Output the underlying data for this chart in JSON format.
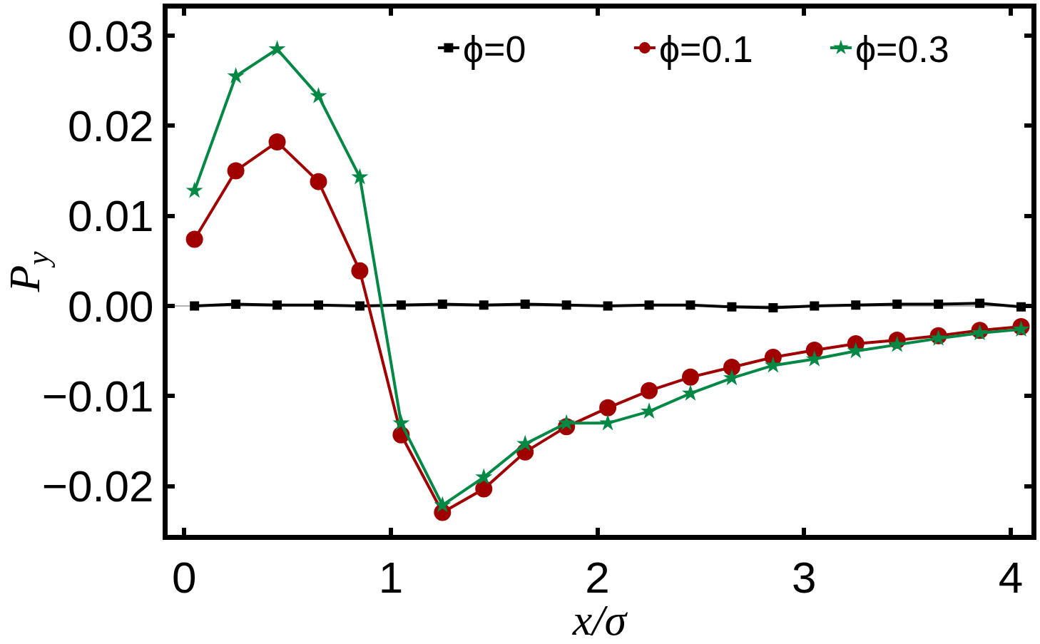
{
  "chart_data": {
    "type": "line",
    "xlabel": "x/σ",
    "ylabel": "P$_{y}$",
    "x": [
      0.05,
      0.25,
      0.45,
      0.65,
      0.85,
      1.05,
      1.25,
      1.45,
      1.65,
      1.85,
      2.05,
      2.25,
      2.45,
      2.65,
      2.85,
      3.05,
      3.25,
      3.45,
      3.65,
      3.85,
      4.05
    ],
    "series": [
      {
        "name": "ϕ=0",
        "color": "#000000",
        "marker": "square",
        "values": [
          0.0,
          0.0002,
          0.0001,
          0.0001,
          0.0,
          0.0001,
          0.0002,
          0.0001,
          0.0002,
          0.0001,
          0.0,
          0.0001,
          0.0001,
          -0.0001,
          -0.0002,
          0.0,
          0.0001,
          0.0002,
          0.0002,
          0.0003,
          -0.0001
        ]
      },
      {
        "name": "ϕ=0.1",
        "color": "#a00000",
        "marker": "circle",
        "values": [
          0.0074,
          0.015,
          0.0182,
          0.0138,
          0.0039,
          -0.0143,
          -0.0229,
          -0.0203,
          -0.0162,
          -0.0134,
          -0.0113,
          -0.0094,
          -0.0079,
          -0.0068,
          -0.0057,
          -0.0049,
          -0.0042,
          -0.0038,
          -0.0033,
          -0.0027,
          -0.0023
        ]
      },
      {
        "name": "ϕ=0.3",
        "color": "#008844",
        "marker": "star",
        "values": [
          0.0128,
          0.0255,
          0.0285,
          0.0233,
          0.0143,
          -0.013,
          -0.0221,
          -0.019,
          -0.0153,
          -0.013,
          -0.013,
          -0.0117,
          -0.0097,
          -0.008,
          -0.0066,
          -0.0059,
          -0.005,
          -0.0043,
          -0.0036,
          -0.003,
          -0.0026
        ]
      }
    ],
    "xlim": [
      -0.08,
      4.1
    ],
    "xticks": [
      0,
      1,
      2,
      3,
      4
    ],
    "ylim": [
      -0.0254,
      0.033
    ],
    "yticks": [
      {
        "value": 0.03,
        "label": "0.03"
      },
      {
        "value": 0.02,
        "label": "0.02"
      },
      {
        "value": 0.01,
        "label": "0.01"
      },
      {
        "value": 0,
        "label": "0.00"
      },
      {
        "value": -0.01,
        "label": "−0.01"
      },
      {
        "value": -0.02,
        "label": "−0.02"
      }
    ],
    "ref_lines": [
      {
        "axis": "y",
        "value": 0,
        "color": "#999999"
      }
    ],
    "grid": false,
    "legend": "top right",
    "line_style": "solid"
  }
}
